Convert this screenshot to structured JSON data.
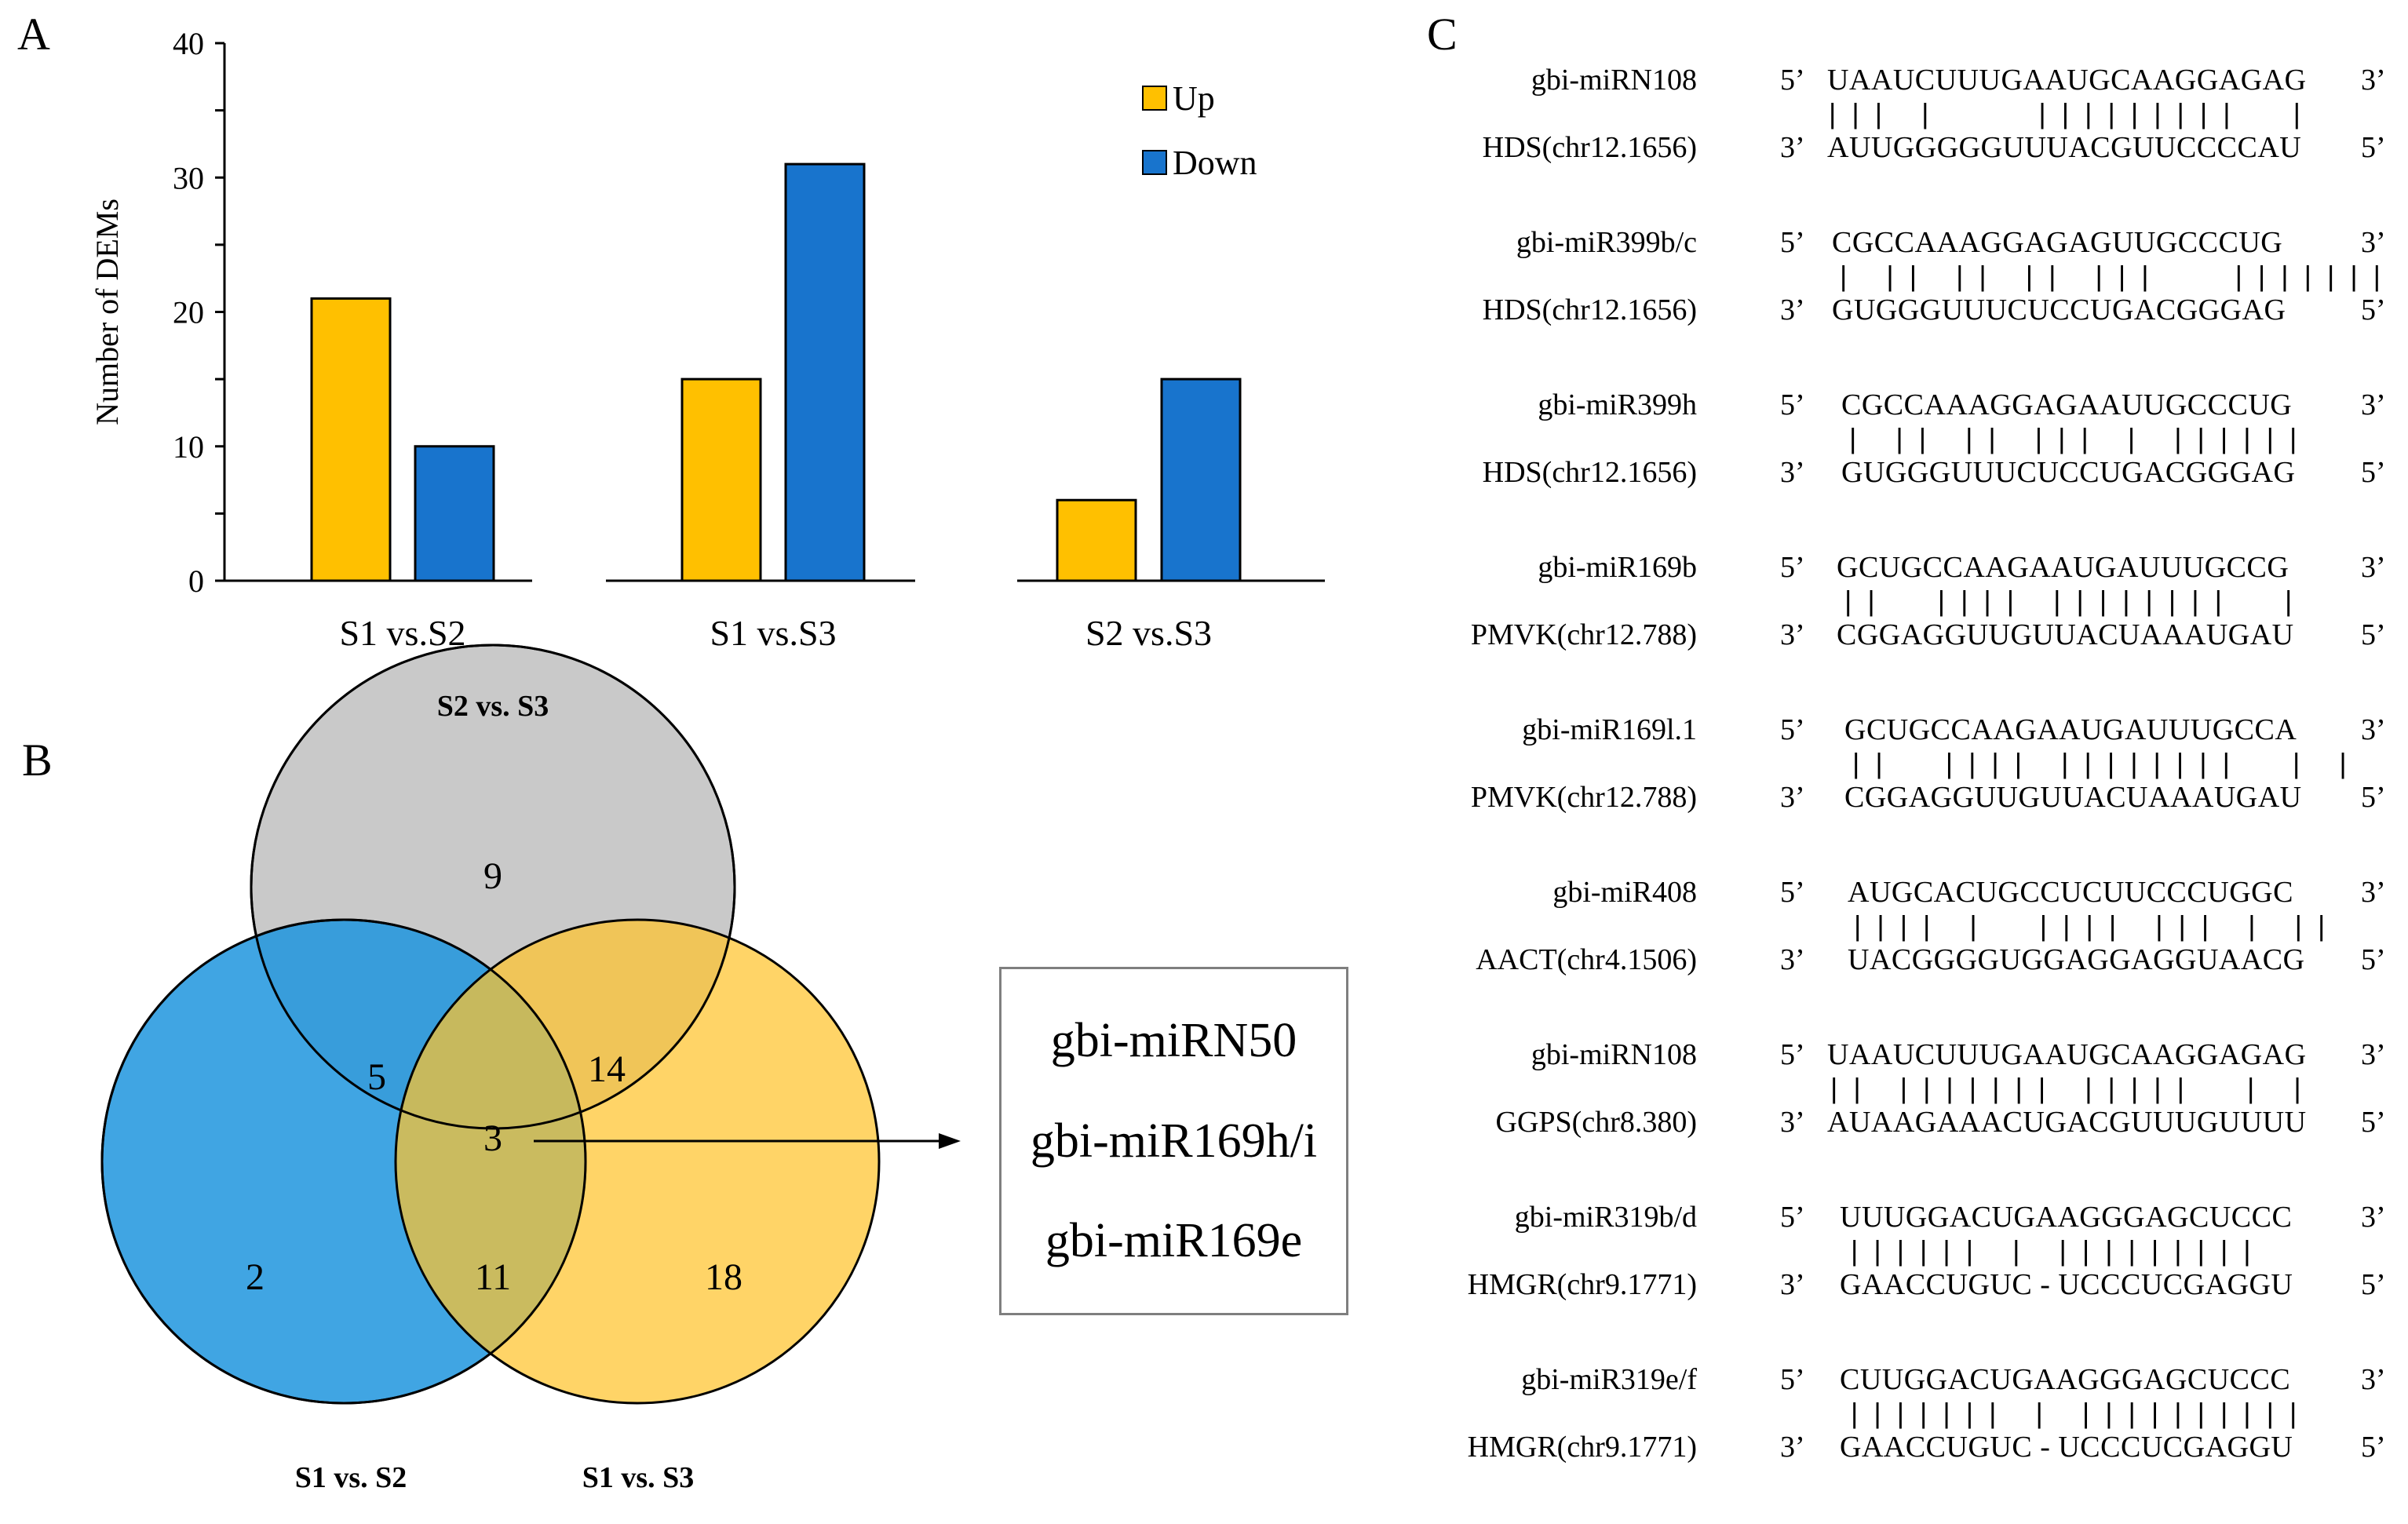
{
  "panels": {
    "a": "A",
    "b": "B",
    "c": "C"
  },
  "chart_data": {
    "type": "bar",
    "categories": [
      "S1 vs.S2",
      "S1 vs.S3",
      "S2 vs.S3"
    ],
    "series": [
      {
        "name": "Up",
        "values": [
          21,
          15,
          6
        ],
        "color": "#FFC000"
      },
      {
        "name": "Down",
        "values": [
          10,
          31,
          15
        ],
        "color": "#1874CD"
      }
    ],
    "ylabel": "Number  of  DEMs",
    "ylim": [
      0,
      40
    ],
    "yticks": [
      0,
      10,
      20,
      30,
      40
    ],
    "legend": "top-right"
  },
  "venn": {
    "sets": [
      {
        "label": "S2 vs. S3",
        "color": "#BFBFBF"
      },
      {
        "label": "S1 vs. S2",
        "color": "#1F95DE"
      },
      {
        "label": "S1 vs. S3",
        "color": "#FFC32D"
      }
    ],
    "regions": {
      "s2s3_only": "9",
      "s1s2_s2s3": "5",
      "s2s3_s1s3": "14",
      "all": "3",
      "s1s2_only": "2",
      "s1s2_s1s3": "11",
      "s1s3_only": "18"
    },
    "shared_mirnas": [
      "gbi-miRN50",
      "gbi-miR169h/i",
      "gbi-miR169e"
    ]
  },
  "alignments": [
    {
      "mirna": "gbi-miRN108",
      "target": "HDS(chr12.1656)",
      "mirna_end_left": "5’",
      "mirna_end_right": "3’",
      "target_end_left": "3’",
      "target_end_right": "5’",
      "mirna_seq": "UAAUCUUUGAAUGCAAGGAGAG",
      "pairing": "| | |   |         | | | | | | | | |     |",
      "target_seq": "AUUGGGGGUUUACGUUCCCCAU"
    },
    {
      "mirna": "gbi-miR399b/c",
      "target": "HDS(chr12.1656)",
      "mirna_end_left": "5’",
      "mirna_end_right": "3’",
      "target_end_left": "3’",
      "target_end_right": "5’",
      "mirna_seq": "CGCCAAAGGAGAGUUGCCCUG",
      "pairing": "|   | |   | |   | |   | | |       | | | | | | |",
      "target_seq": "GUGGGUUUCUCCUGACGGGAG"
    },
    {
      "mirna": "gbi-miR399h",
      "target": "HDS(chr12.1656)",
      "mirna_end_left": "5’",
      "mirna_end_right": "3’",
      "target_end_left": "3’",
      "target_end_right": "5’",
      "mirna_seq": "CGCCAAAGGAGAAUUGCCCUG",
      "pairing": "|   | |   | |   | | |   |   | | | | | |",
      "target_seq": "GUGGGUUUCUCCUGACGGGAG"
    },
    {
      "mirna": "gbi-miR169b",
      "target": "PMVK(chr12.788)",
      "mirna_end_left": "5’",
      "mirna_end_right": "3’",
      "target_end_left": "3’",
      "target_end_right": "5’",
      "mirna_seq": "GCUGCCAAGAAUGAUUUGCCG",
      "pairing": "| |     | | | |   | | | | | | | |     |",
      "target_seq": "CGGAGGUUGUUACUAAAUGAU"
    },
    {
      "mirna": "gbi-miR169l.1",
      "target": "PMVK(chr12.788)",
      "mirna_end_left": "5’",
      "mirna_end_right": "3’",
      "target_end_left": "3’",
      "target_end_right": "5’",
      "mirna_seq": "GCUGCCAAGAAUGAUUUGCCA",
      "pairing": "| |     | | | |   | | | | | | | |     |   |",
      "target_seq": "CGGAGGUUGUUACUAAAUGAU"
    },
    {
      "mirna": "gbi-miR408",
      "target": "AACT(chr4.1506)",
      "mirna_end_left": "5’",
      "mirna_end_right": "3’",
      "target_end_left": "3’",
      "target_end_right": "5’",
      "mirna_seq": "AUGCACUGCCUCUUCCCUGGC",
      "pairing": "| | | |   |     | | | |   | | |   |   | |",
      "target_seq": "UACGGGGUGGAGGAGGUAACG"
    },
    {
      "mirna": "gbi-miRN108",
      "target": "GGPS(chr8.380)",
      "mirna_end_left": "5’",
      "mirna_end_right": "3’",
      "target_end_left": "3’",
      "target_end_right": "5’",
      "mirna_seq": "UAAUCUUUGAAUGCAAGGAGAG",
      "pairing": "| |   | | | | | | |   | | | | |     |   |",
      "target_seq": "AUAAGAAACUGACGUUUGUUUU"
    },
    {
      "mirna": "gbi-miR319b/d",
      "target": "HMGR(chr9.1771)",
      "mirna_end_left": "5’",
      "mirna_end_right": "3’",
      "target_end_left": "3’",
      "target_end_right": "5’",
      "mirna_seq": "UUUGGACUGAAGGGAGCUCCC",
      "pairing": "| | | | | |   |   | | | | | | | | |",
      "target_seq": "GAACCUGUC - UCCCUCGAGGU"
    },
    {
      "mirna": "gbi-miR319e/f",
      "target": "HMGR(chr9.1771)",
      "mirna_end_left": "5’",
      "mirna_end_right": "3’",
      "target_end_left": "3’",
      "target_end_right": "5’",
      "mirna_seq": "CUUGGACUGAAGGGAGCUCCC",
      "pairing": "| | | | | | |   |   | | | | | | | | | |",
      "target_seq": "GAACCUGUC - UCCCUCGAGGU"
    }
  ]
}
